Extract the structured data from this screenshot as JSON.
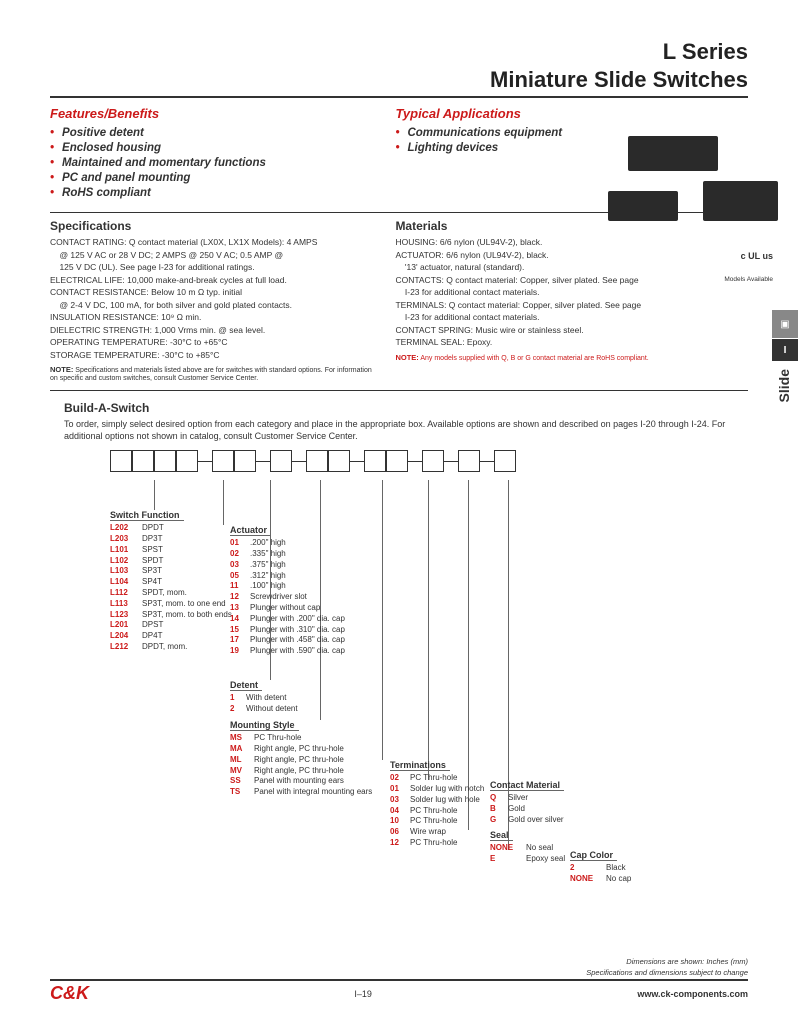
{
  "title_line1": "L Series",
  "title_line2": "Miniature Slide Switches",
  "features_head": "Features/Benefits",
  "features": [
    "Positive detent",
    "Enclosed housing",
    "Maintained and momentary functions",
    "PC and panel mounting",
    "RoHS compliant"
  ],
  "apps_head": "Typical Applications",
  "apps": [
    "Communications equipment",
    "Lighting devices"
  ],
  "ul_mark": "c UL us",
  "models_available": "Models Available",
  "side_icon": "▣",
  "side_letter": "I",
  "side_slide": "Slide",
  "spec_head": "Specifications",
  "spec_lines": [
    "CONTACT RATING: Q contact material (LX0X, LX1X Models): 4 AMPS",
    "    @ 125 V AC or 28 V DC; 2 AMPS @ 250 V AC; 0.5 AMP @",
    "    125 V DC (UL). See page I-23 for additional ratings.",
    "ELECTRICAL LIFE: 10,000 make-and-break cycles at full load.",
    "CONTACT RESISTANCE: Below 10 m Ω typ. initial",
    "    @ 2-4 V DC, 100 mA, for both silver and gold plated contacts.",
    "INSULATION RESISTANCE: 10⁹ Ω min.",
    "DIELECTRIC STRENGTH: 1,000 Vrms min. @ sea level.",
    "OPERATING TEMPERATURE: -30°C to +65°C",
    "STORAGE TEMPERATURE: -30°C to +85°C"
  ],
  "mat_head": "Materials",
  "mat_lines": [
    "HOUSING: 6/6 nylon (UL94V-2), black.",
    "ACTUATOR: 6/6 nylon (UL94V-2), black.",
    "    '13' actuator, natural (standard).",
    "CONTACTS: Q contact material: Copper, silver plated. See page",
    "    I-23 for additional contact materials.",
    "TERMINALS: Q contact material: Copper, silver plated. See page",
    "    I-23 for additional contact materials.",
    "CONTACT SPRING: Music wire or stainless steel.",
    "TERMINAL SEAL: Epoxy."
  ],
  "mat_note_label": "NOTE:",
  "mat_note": " Any models supplied with Q, B or G contact material are RoHS compliant.",
  "spec_note_label": "NOTE:",
  "spec_note": " Specifications and materials listed above are for switches with standard options. For information on specific and custom switches, consult Customer Service Center.",
  "build_head": "Build-A-Switch",
  "build_intro": "To order, simply select desired option from each category and place in the appropriate box. Available options are shown and described on pages I-20 through I-24. For additional options not shown in catalog, consult Customer Service Center.",
  "groups": {
    "switch_function": {
      "title": "Switch Function",
      "rows": [
        [
          "L202",
          "DPDT"
        ],
        [
          "L203",
          "DP3T"
        ],
        [
          "L101",
          "SPST"
        ],
        [
          "L102",
          "SPDT"
        ],
        [
          "L103",
          "SP3T"
        ],
        [
          "L104",
          "SP4T"
        ],
        [
          "L112",
          "SPDT, mom."
        ],
        [
          "L113",
          "SP3T, mom. to one end"
        ],
        [
          "L123",
          "SP3T, mom. to both ends"
        ],
        [
          "L201",
          "DPST"
        ],
        [
          "L204",
          "DP4T"
        ],
        [
          "L212",
          "DPDT, mom."
        ]
      ]
    },
    "actuator": {
      "title": "Actuator",
      "rows": [
        [
          "01",
          ".200\" high"
        ],
        [
          "02",
          ".335\" high"
        ],
        [
          "03",
          ".375\" high"
        ],
        [
          "05",
          ".312\" high"
        ],
        [
          "11",
          ".100\" high"
        ],
        [
          "12",
          "Screwdriver slot"
        ],
        [
          "13",
          "Plunger without cap"
        ],
        [
          "14",
          "Plunger with .200\" dia. cap"
        ],
        [
          "15",
          "Plunger with .310\" dia. cap"
        ],
        [
          "17",
          "Plunger with .458\" dia. cap"
        ],
        [
          "19",
          "Plunger with .590\" dia. cap"
        ]
      ]
    },
    "detent": {
      "title": "Detent",
      "rows": [
        [
          "1",
          "With detent"
        ],
        [
          "2",
          "Without detent"
        ]
      ]
    },
    "mounting": {
      "title": "Mounting Style",
      "rows": [
        [
          "MS",
          "PC Thru-hole"
        ],
        [
          "MA",
          "Right angle, PC thru-hole"
        ],
        [
          "ML",
          "Right angle, PC thru-hole"
        ],
        [
          "MV",
          "Right angle, PC thru-hole"
        ],
        [
          "SS",
          "Panel with mounting ears"
        ],
        [
          "TS",
          "Panel with integral mounting ears"
        ]
      ]
    },
    "terminations": {
      "title": "Terminations",
      "rows": [
        [
          "02",
          "PC Thru-hole"
        ],
        [
          "01",
          "Solder lug with notch"
        ],
        [
          "03",
          "Solder lug with hole"
        ],
        [
          "04",
          "PC Thru-hole"
        ],
        [
          "10",
          "PC Thru-hole"
        ],
        [
          "06",
          "Wire wrap"
        ],
        [
          "12",
          "PC Thru-hole"
        ]
      ]
    },
    "contact": {
      "title": "Contact Material",
      "rows": [
        [
          "Q",
          "Silver"
        ],
        [
          "B",
          "Gold"
        ],
        [
          "G",
          "Gold over silver"
        ]
      ]
    },
    "seal": {
      "title": "Seal",
      "rows": [
        [
          "NONE",
          "No seal"
        ],
        [
          "E",
          "Epoxy seal"
        ]
      ]
    },
    "cap": {
      "title": "Cap Color",
      "rows": [
        [
          "2",
          "Black"
        ],
        [
          "NONE",
          "No cap"
        ]
      ]
    }
  },
  "footer_note1": "Dimensions are shown: Inches (mm)",
  "footer_note2": "Specifications and dimensions subject to change",
  "logo": "C&K",
  "page_num": "I–19",
  "url": "www.ck-components.com",
  "colors": {
    "accent": "#cc1a1a"
  }
}
